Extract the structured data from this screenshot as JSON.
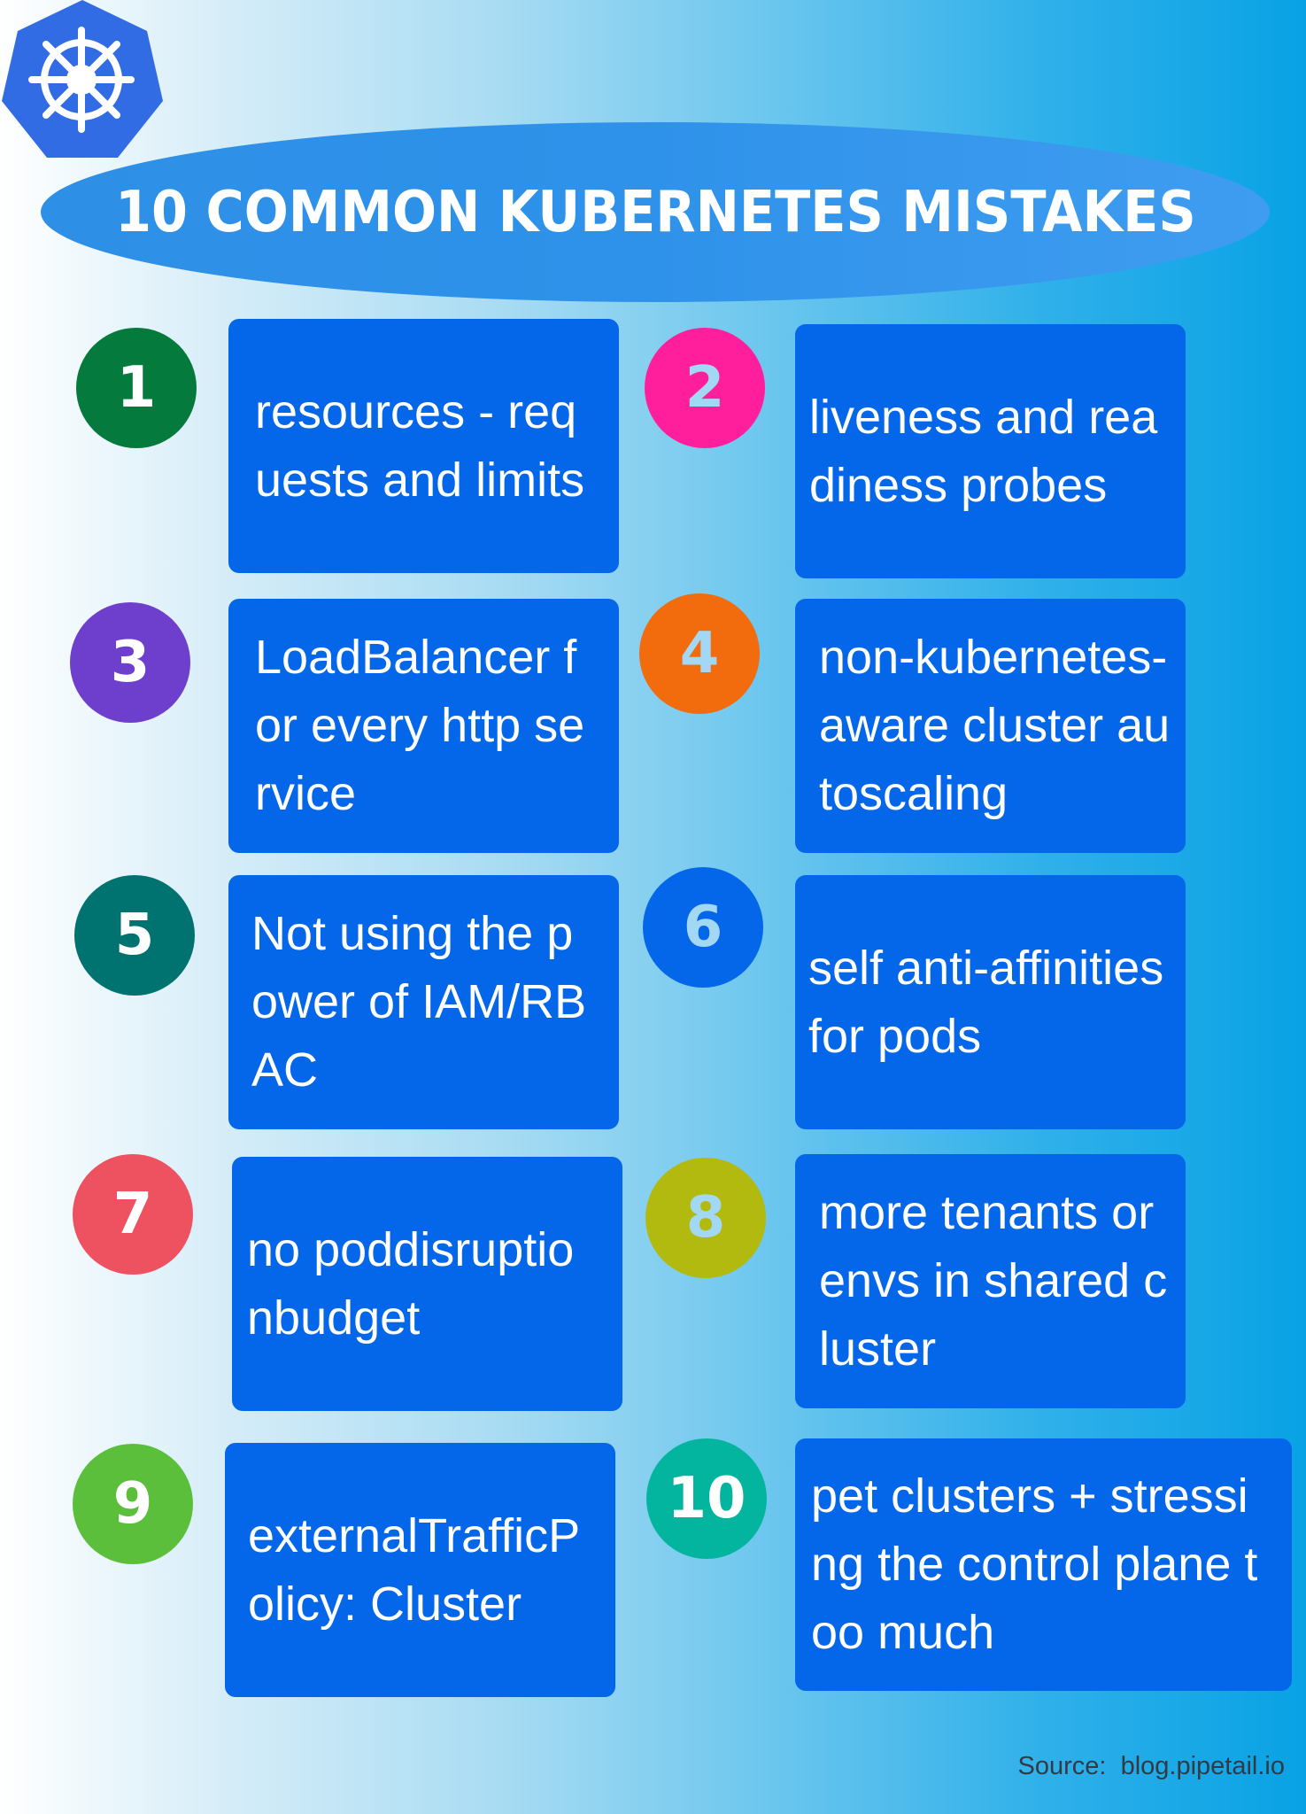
{
  "title": "10 COMMON KUBERNETES MISTAKES",
  "logo_icon": "helm-wheel-icon",
  "items": [
    {
      "number": "1",
      "text": "resources - requests and limits",
      "circle_color": "#047a3c",
      "number_color": "#ffffff"
    },
    {
      "number": "2",
      "text": "liveness and readiness probes",
      "circle_color": "#ff1f9c",
      "number_color": "#a3d8f4"
    },
    {
      "number": "3",
      "text": "LoadBalancer for every http service",
      "circle_color": "#6e3fcd",
      "number_color": "#ffffff"
    },
    {
      "number": "4",
      "text": "non-kubernetes-aware cluster autoscaling",
      "circle_color": "#f26b0c",
      "number_color": "#a3d8f4"
    },
    {
      "number": "5",
      "text": "Not using the power of IAM/RBAC",
      "circle_color": "#007270",
      "number_color": "#ffffff"
    },
    {
      "number": "6",
      "text": "self anti-affinities for pods",
      "circle_color": "#0466e8",
      "number_color": "#a3d8f4"
    },
    {
      "number": "7",
      "text": "no poddisruptionbudget",
      "circle_color": "#ee5160",
      "number_color": "#ffffff"
    },
    {
      "number": "8",
      "text": "more tenants or envs in shared cluster",
      "circle_color": "#b2b90f",
      "number_color": "#a3d8f4"
    },
    {
      "number": "9",
      "text": "externalTrafficPolicy: Cluster",
      "circle_color": "#5cbf3c",
      "number_color": "#ffffff"
    },
    {
      "number": "10",
      "text": "pet clusters + stressing the control plane too much",
      "circle_color": "#03b59f",
      "number_color": "#ffffff"
    }
  ],
  "source": "Source:  blog.pipetail.io"
}
